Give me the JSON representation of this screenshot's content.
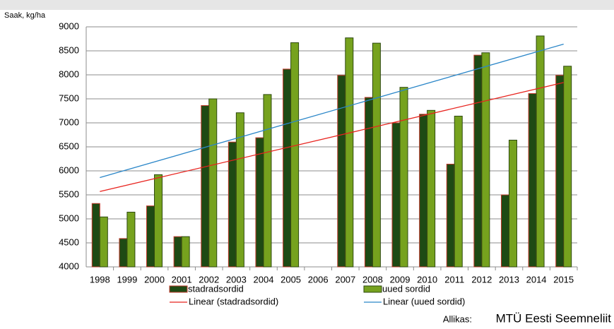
{
  "chart_data": {
    "type": "bar",
    "y_label": "Saak, kg/ha",
    "categories": [
      "1998",
      "1999",
      "2000",
      "2001",
      "2002",
      "2003",
      "2004",
      "2005",
      "2006",
      "2007",
      "2008",
      "2009",
      "2010",
      "2011",
      "2012",
      "2013",
      "2014",
      "2015"
    ],
    "series": [
      {
        "name": "stadradsordid",
        "color": "#1e4a14",
        "edge": "#c0392b",
        "values": [
          5320,
          4590,
          5270,
          4630,
          7360,
          6600,
          6690,
          8120,
          null,
          7990,
          7530,
          7000,
          7180,
          6140,
          8410,
          5500,
          7610,
          7990
        ]
      },
      {
        "name": "uued sordid",
        "color": "#76a21e",
        "edge": "#2e4a10",
        "values": [
          5040,
          5140,
          5920,
          4630,
          7500,
          7210,
          7590,
          8670,
          null,
          8770,
          8660,
          7740,
          7260,
          7140,
          8460,
          6640,
          8810,
          8180
        ]
      }
    ],
    "trendlines": [
      {
        "name": "Linear (stadradsordid)",
        "color": "#e8231e",
        "values": [
          5570,
          7840
        ]
      },
      {
        "name": "Linear (uued sordid)",
        "color": "#2a86c8",
        "values": [
          5860,
          8640
        ]
      }
    ],
    "ylim": [
      4000,
      9000
    ],
    "yticks": [
      4000,
      4500,
      5000,
      5500,
      6000,
      6500,
      7000,
      7500,
      8000,
      8500,
      9000
    ],
    "grid": true,
    "source_prefix": "Allikas:",
    "source": "MTÜ Eesti Seemneliit"
  }
}
